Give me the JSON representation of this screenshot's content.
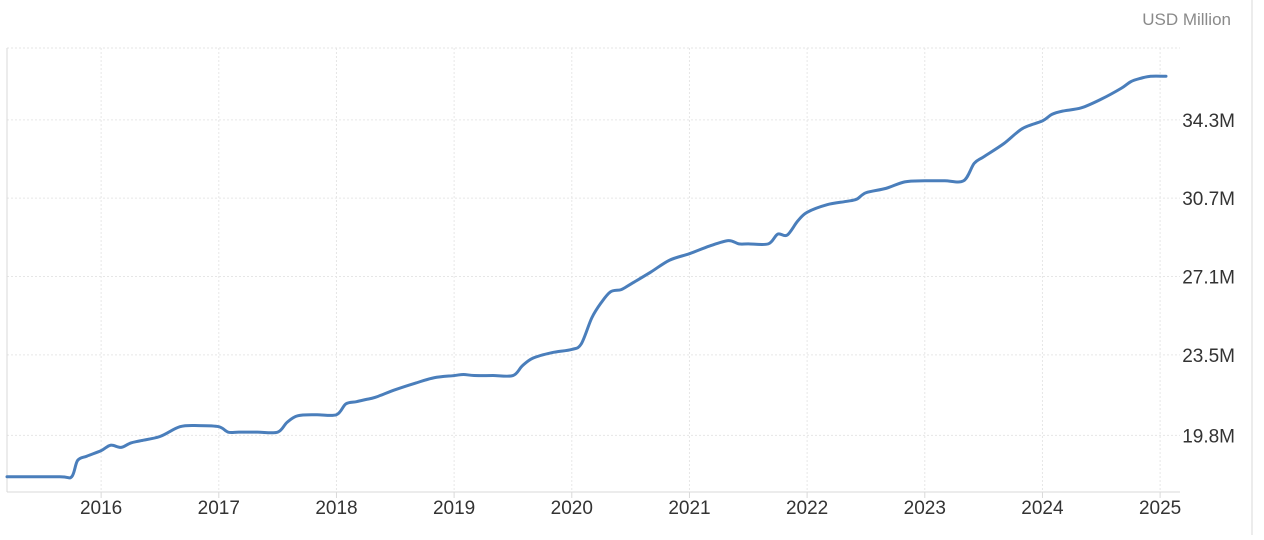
{
  "chart_data": {
    "type": "line",
    "unit_label": "USD Million",
    "xlim": [
      2015.2,
      2025.05
    ],
    "ylim": [
      17.2,
      37.6
    ],
    "x_ticks": [
      {
        "value": 2016,
        "label": "2016"
      },
      {
        "value": 2017,
        "label": "2017"
      },
      {
        "value": 2018,
        "label": "2018"
      },
      {
        "value": 2019,
        "label": "2019"
      },
      {
        "value": 2020,
        "label": "2020"
      },
      {
        "value": 2021,
        "label": "2021"
      },
      {
        "value": 2022,
        "label": "2022"
      },
      {
        "value": 2023,
        "label": "2023"
      },
      {
        "value": 2024,
        "label": "2024"
      },
      {
        "value": 2025,
        "label": "2025"
      }
    ],
    "y_ticks": [
      {
        "value": 19.8,
        "label": "19.8M"
      },
      {
        "value": 23.5,
        "label": "23.5M"
      },
      {
        "value": 27.1,
        "label": "27.1M"
      },
      {
        "value": 30.7,
        "label": "30.7M"
      },
      {
        "value": 34.3,
        "label": "34.3M"
      }
    ],
    "grid": true,
    "series": [
      {
        "color": "#4a7ebb",
        "x": [
          2015.2,
          2015.65,
          2015.75,
          2015.8,
          2015.88,
          2016.0,
          2016.08,
          2016.17,
          2016.25,
          2016.33,
          2016.5,
          2016.67,
          2016.83,
          2017.0,
          2017.08,
          2017.17,
          2017.33,
          2017.5,
          2017.58,
          2017.67,
          2017.83,
          2018.0,
          2018.08,
          2018.17,
          2018.25,
          2018.33,
          2018.5,
          2018.67,
          2018.83,
          2019.0,
          2019.08,
          2019.17,
          2019.33,
          2019.5,
          2019.58,
          2019.67,
          2019.83,
          2020.0,
          2020.08,
          2020.17,
          2020.25,
          2020.33,
          2020.42,
          2020.5,
          2020.67,
          2020.83,
          2021.0,
          2021.17,
          2021.33,
          2021.42,
          2021.5,
          2021.67,
          2021.75,
          2021.83,
          2021.92,
          2022.0,
          2022.17,
          2022.33,
          2022.42,
          2022.5,
          2022.67,
          2022.83,
          2023.0,
          2023.17,
          2023.33,
          2023.42,
          2023.5,
          2023.67,
          2023.83,
          2024.0,
          2024.08,
          2024.17,
          2024.33,
          2024.5,
          2024.67,
          2024.75,
          2024.83,
          2024.92,
          2025.05
        ],
        "y": [
          17.9,
          17.9,
          17.9,
          18.65,
          18.85,
          19.1,
          19.35,
          19.25,
          19.45,
          19.55,
          19.75,
          20.2,
          20.25,
          20.2,
          19.95,
          19.95,
          19.95,
          19.95,
          20.4,
          20.7,
          20.75,
          20.75,
          21.25,
          21.35,
          21.45,
          21.55,
          21.9,
          22.2,
          22.45,
          22.55,
          22.6,
          22.55,
          22.55,
          22.55,
          23.0,
          23.35,
          23.6,
          23.75,
          24.0,
          25.2,
          25.9,
          26.4,
          26.5,
          26.75,
          27.3,
          27.85,
          28.15,
          28.5,
          28.75,
          28.6,
          28.6,
          28.6,
          29.05,
          29.0,
          29.65,
          30.05,
          30.4,
          30.55,
          30.65,
          30.95,
          31.15,
          31.45,
          31.5,
          31.5,
          31.5,
          32.3,
          32.6,
          33.2,
          33.9,
          34.25,
          34.55,
          34.7,
          34.85,
          35.25,
          35.75,
          36.05,
          36.2,
          36.3,
          36.3
        ]
      }
    ]
  }
}
